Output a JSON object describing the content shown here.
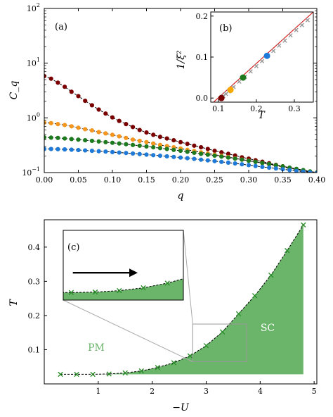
{
  "chart_data": [
    {
      "type": "line",
      "panel_label": "(a)",
      "xlabel": "q",
      "ylabel": "C_q",
      "xlim": [
        0.0,
        0.4
      ],
      "ylim": [
        0.1,
        100
      ],
      "yscale": "log",
      "xticks": [
        "0.00",
        "0.05",
        "0.10",
        "0.15",
        "0.20",
        "0.25",
        "0.30",
        "0.35",
        "0.40"
      ],
      "yticks": [
        {
          "base": "10",
          "exp": "−1"
        },
        {
          "base": "10",
          "exp": "0"
        },
        {
          "base": "10",
          "exp": "1"
        },
        {
          "base": "10",
          "exp": "2"
        }
      ],
      "grid": false,
      "x": [
        0.0,
        0.01,
        0.02,
        0.03,
        0.04,
        0.05,
        0.06,
        0.07,
        0.08,
        0.09,
        0.1,
        0.11,
        0.12,
        0.13,
        0.14,
        0.15,
        0.16,
        0.17,
        0.18,
        0.19,
        0.2,
        0.21,
        0.22,
        0.23,
        0.24,
        0.25,
        0.26,
        0.27,
        0.28,
        0.29,
        0.3,
        0.31,
        0.32,
        0.33,
        0.34,
        0.35,
        0.36,
        0.37,
        0.38,
        0.39,
        0.4
      ],
      "series": [
        {
          "color": "#7a0000",
          "values": [
            5.8,
            5.2,
            4.4,
            3.7,
            3.0,
            2.5,
            2.05,
            1.7,
            1.42,
            1.2,
            1.02,
            0.88,
            0.77,
            0.68,
            0.6,
            0.54,
            0.49,
            0.45,
            0.42,
            0.39,
            0.36,
            0.335,
            0.31,
            0.29,
            0.27,
            0.25,
            0.235,
            0.22,
            0.205,
            0.19,
            0.18,
            0.168,
            0.158,
            0.148,
            0.138,
            0.13,
            0.122,
            0.115,
            0.108,
            0.102,
            0.097
          ]
        },
        {
          "color": "#f5961e",
          "values": [
            0.82,
            0.8,
            0.77,
            0.74,
            0.7,
            0.66,
            0.62,
            0.59,
            0.55,
            0.52,
            0.49,
            0.46,
            0.43,
            0.4,
            0.38,
            0.36,
            0.34,
            0.32,
            0.305,
            0.29,
            0.275,
            0.26,
            0.247,
            0.235,
            0.223,
            0.212,
            0.202,
            0.192,
            0.182,
            0.173,
            0.165,
            0.157,
            0.149,
            0.141,
            0.134,
            0.127,
            0.12,
            0.114,
            0.108,
            0.103,
            0.098
          ]
        },
        {
          "color": "#1e7a1e",
          "values": [
            0.44,
            0.435,
            0.43,
            0.42,
            0.41,
            0.4,
            0.39,
            0.38,
            0.37,
            0.36,
            0.35,
            0.34,
            0.33,
            0.32,
            0.31,
            0.3,
            0.29,
            0.28,
            0.27,
            0.26,
            0.25,
            0.24,
            0.23,
            0.22,
            0.212,
            0.204,
            0.196,
            0.188,
            0.18,
            0.172,
            0.164,
            0.157,
            0.15,
            0.143,
            0.136,
            0.13,
            0.123,
            0.117,
            0.111,
            0.105,
            0.1
          ]
        },
        {
          "color": "#1e7ad6",
          "values": [
            0.27,
            0.27,
            0.268,
            0.265,
            0.262,
            0.258,
            0.254,
            0.25,
            0.246,
            0.242,
            0.237,
            0.232,
            0.228,
            0.223,
            0.218,
            0.213,
            0.208,
            0.203,
            0.198,
            0.193,
            0.188,
            0.183,
            0.178,
            0.172,
            0.167,
            0.162,
            0.157,
            0.152,
            0.147,
            0.142,
            0.137,
            0.132,
            0.127,
            0.123,
            0.119,
            0.115,
            0.111,
            0.107,
            0.104,
            0.101,
            0.098
          ]
        }
      ]
    },
    {
      "type": "scatter",
      "panel_label": "(b)",
      "xlabel": "T",
      "ylabel": "1/ξ²",
      "xlim": [
        0.08,
        0.35
      ],
      "ylim": [
        -0.01,
        0.21
      ],
      "xticks": [
        "0.1",
        "0.2",
        "0.3"
      ],
      "yticks": [
        "0.0",
        "0.1",
        "0.2"
      ],
      "fit_line": {
        "color": "#d62020",
        "x": [
          0.085,
          0.35
        ],
        "y": [
          -0.012,
          0.21
        ]
      },
      "grey_points": {
        "color": "#999999",
        "x": [
          0.113,
          0.12,
          0.127,
          0.14,
          0.155,
          0.17,
          0.185,
          0.2,
          0.215,
          0.23,
          0.245,
          0.26,
          0.275,
          0.29,
          0.305,
          0.32,
          0.335
        ],
        "y": [
          0.005,
          0.01,
          0.016,
          0.027,
          0.04,
          0.052,
          0.065,
          0.078,
          0.09,
          0.103,
          0.115,
          0.128,
          0.14,
          0.153,
          0.166,
          0.178,
          0.19
        ]
      },
      "highlight_points": [
        {
          "x": 0.108,
          "y": 0.0,
          "color": "#7a0000"
        },
        {
          "x": 0.132,
          "y": 0.02,
          "color": "#f5a800"
        },
        {
          "x": 0.165,
          "y": 0.05,
          "color": "#1e7a1e"
        },
        {
          "x": 0.228,
          "y": 0.103,
          "color": "#1e7ad6"
        }
      ]
    },
    {
      "type": "area",
      "panel_label": "(c)",
      "xlabel": "−U",
      "ylabel": "T",
      "xlim": [
        0.0,
        5.05
      ],
      "ylim": [
        0.0,
        0.48
      ],
      "xticks": [
        "1",
        "2",
        "3",
        "4",
        "5"
      ],
      "yticks": [
        "0.1",
        "0.2",
        "0.3",
        "0.4"
      ],
      "fill_color": "#6ab56a",
      "marker_color": "#2a8c2a",
      "region_labels": [
        "PM",
        "SC"
      ],
      "boundary": {
        "x": [
          0.3,
          0.6,
          0.9,
          1.2,
          1.5,
          1.8,
          2.1,
          2.4,
          2.7,
          3.0,
          3.3,
          3.6,
          3.9,
          4.2,
          4.5,
          4.8
        ],
        "y": [
          0.028,
          0.028,
          0.028,
          0.029,
          0.032,
          0.038,
          0.048,
          0.062,
          0.082,
          0.112,
          0.152,
          0.205,
          0.258,
          0.318,
          0.39,
          0.465
        ]
      },
      "inset": {
        "xlim": [
          0.8,
          2.3
        ],
        "ylim": [
          0.012,
          0.16
        ],
        "zoom_box_x": [
          2.75,
          3.75
        ],
        "zoom_box_y": [
          0.065,
          0.175
        ]
      }
    }
  ]
}
